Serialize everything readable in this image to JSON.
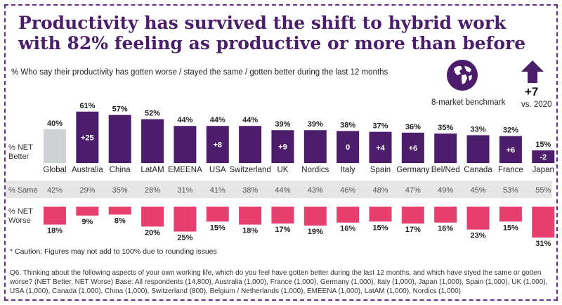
{
  "title": "Productivity has survived the shift to hybrid work with 82% feeling as productive or more than before",
  "subtitle": "% Who say their productivity has gotten worse / stayed the same / gotten better during the last 12 months",
  "benchmark": {
    "label": "8-market benchmark",
    "icon": "globe-icon",
    "delta": "+7",
    "delta_label": "vs. 2020"
  },
  "row_labels": {
    "better": [
      "% NET",
      "Better"
    ],
    "same": "% Same",
    "worse": [
      "% NET",
      "Worse"
    ]
  },
  "colors": {
    "better": "#4b1d6b",
    "global": "#d0d2d3",
    "worse": "#e8406e",
    "same_band": "#e6e6e6"
  },
  "chart_data": {
    "type": "bar",
    "categories": [
      "Global",
      "Australia",
      "China",
      "LatAM",
      "EMEENA",
      "USA",
      "Switzerland",
      "UK",
      "Nordics",
      "Italy",
      "Spain",
      "Germany",
      "Bel/Ned",
      "Canada",
      "France",
      "Japan"
    ],
    "series": [
      {
        "name": "% NET Better",
        "values": [
          40,
          61,
          57,
          52,
          44,
          44,
          44,
          39,
          39,
          38,
          37,
          36,
          35,
          33,
          32,
          15
        ],
        "labels": [
          "40%",
          "61%",
          "57%",
          "52%",
          "44%",
          "44%",
          "44%",
          "39%",
          "39%",
          "38%",
          "37%",
          "36%",
          "35%",
          "33%",
          "32%",
          "15%"
        ]
      },
      {
        "name": "% Same",
        "values": [
          42,
          29,
          35,
          28,
          31,
          41,
          38,
          44,
          43,
          46,
          48,
          47,
          49,
          45,
          53,
          55
        ],
        "labels": [
          "42%",
          "29%",
          "35%",
          "28%",
          "31%",
          "41%",
          "38%",
          "44%",
          "43%",
          "46%",
          "48%",
          "47%",
          "49%",
          "45%",
          "53%",
          "55%"
        ]
      },
      {
        "name": "% NET Worse",
        "values": [
          18,
          9,
          8,
          20,
          25,
          15,
          18,
          17,
          19,
          16,
          15,
          17,
          16,
          23,
          15,
          31
        ],
        "labels": [
          "18%",
          "9%",
          "8%",
          "20%",
          "25%",
          "15%",
          "18%",
          "17%",
          "19%",
          "16%",
          "15%",
          "17%",
          "16%",
          "23%",
          "15%",
          "31%"
        ]
      }
    ],
    "changes": [
      "",
      "+25",
      "",
      "",
      "",
      "+8",
      "",
      "+9",
      "",
      "0",
      "+4",
      "+6",
      "",
      "",
      "+6",
      "-2"
    ]
  },
  "footnote": "* Caution: Figures may not add to 100% due to rounding issues",
  "question": "Q6. Thinking about the following aspects of your own working life, which do you feel have gotten better during the last 12 months, and which have styed the same or gotten worse? (NET Better, NET Worse) Base: All respondents (14,800), Australia (1,000), France (1,000), Germany (1,000), Italy (1,000), Japan (1,000), Spain (1,000), UK (1,000), USA (1,000), Canada (1,000), China (1,000), Switzerland (800), Belgium / Netherlands (1,000), EMEENA (1,000), LatAM (1,000), Nordics (1,000)"
}
